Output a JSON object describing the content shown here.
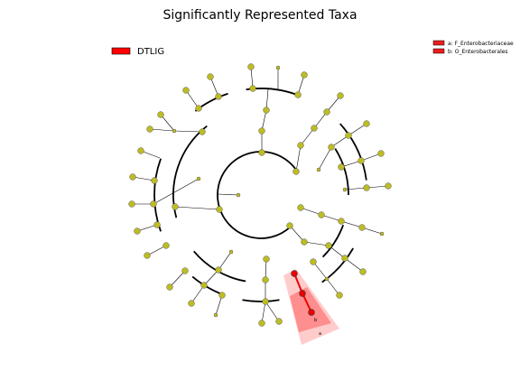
{
  "title": "Significantly Represented Taxa",
  "legend": [
    {
      "label": "DTLIG",
      "color": "#ff0000"
    }
  ],
  "clade_legend": [
    {
      "label": "a: F_Enterobacteriaceae"
    },
    {
      "label": "b: O_Enterobacterales"
    }
  ],
  "clade_labels": [
    "a",
    "b"
  ]
}
